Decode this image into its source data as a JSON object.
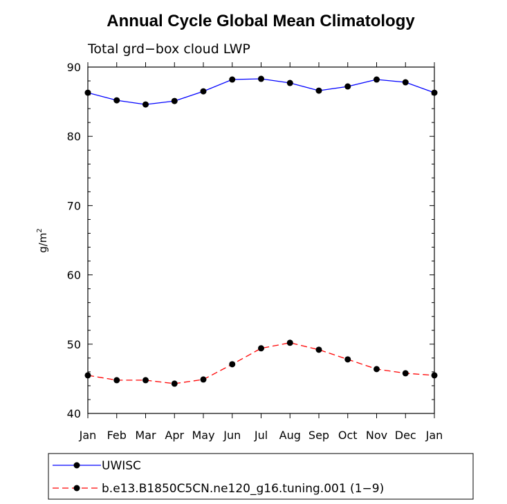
{
  "chart_data": {
    "type": "line",
    "title": "Annual Cycle Global Mean Climatology",
    "subtitle": "Total grd−box cloud LWP",
    "ylabel_base": "g/m",
    "ylabel_sup": "2",
    "xlabel": "",
    "categories": [
      "Jan",
      "Feb",
      "Mar",
      "Apr",
      "May",
      "Jun",
      "Jul",
      "Aug",
      "Sep",
      "Oct",
      "Nov",
      "Dec",
      "Jan"
    ],
    "ylim": [
      40,
      90
    ],
    "yticks": [
      40,
      50,
      60,
      70,
      80,
      90
    ],
    "series": [
      {
        "name": "UWISC",
        "color": "#0000ff",
        "dash": "solid",
        "values": [
          86.3,
          85.2,
          84.6,
          85.1,
          86.5,
          88.2,
          88.3,
          87.7,
          86.6,
          87.2,
          88.2,
          87.8,
          86.3
        ]
      },
      {
        "name": "b.e13.B1850C5CN.ne120_g16.tuning.001 (1−9)",
        "color": "#ff0000",
        "dash": "dashed",
        "values": [
          45.5,
          44.8,
          44.8,
          44.3,
          44.9,
          47.1,
          49.4,
          50.2,
          49.2,
          47.8,
          46.4,
          45.8,
          45.5
        ]
      }
    ],
    "legend_position": "bottom"
  }
}
